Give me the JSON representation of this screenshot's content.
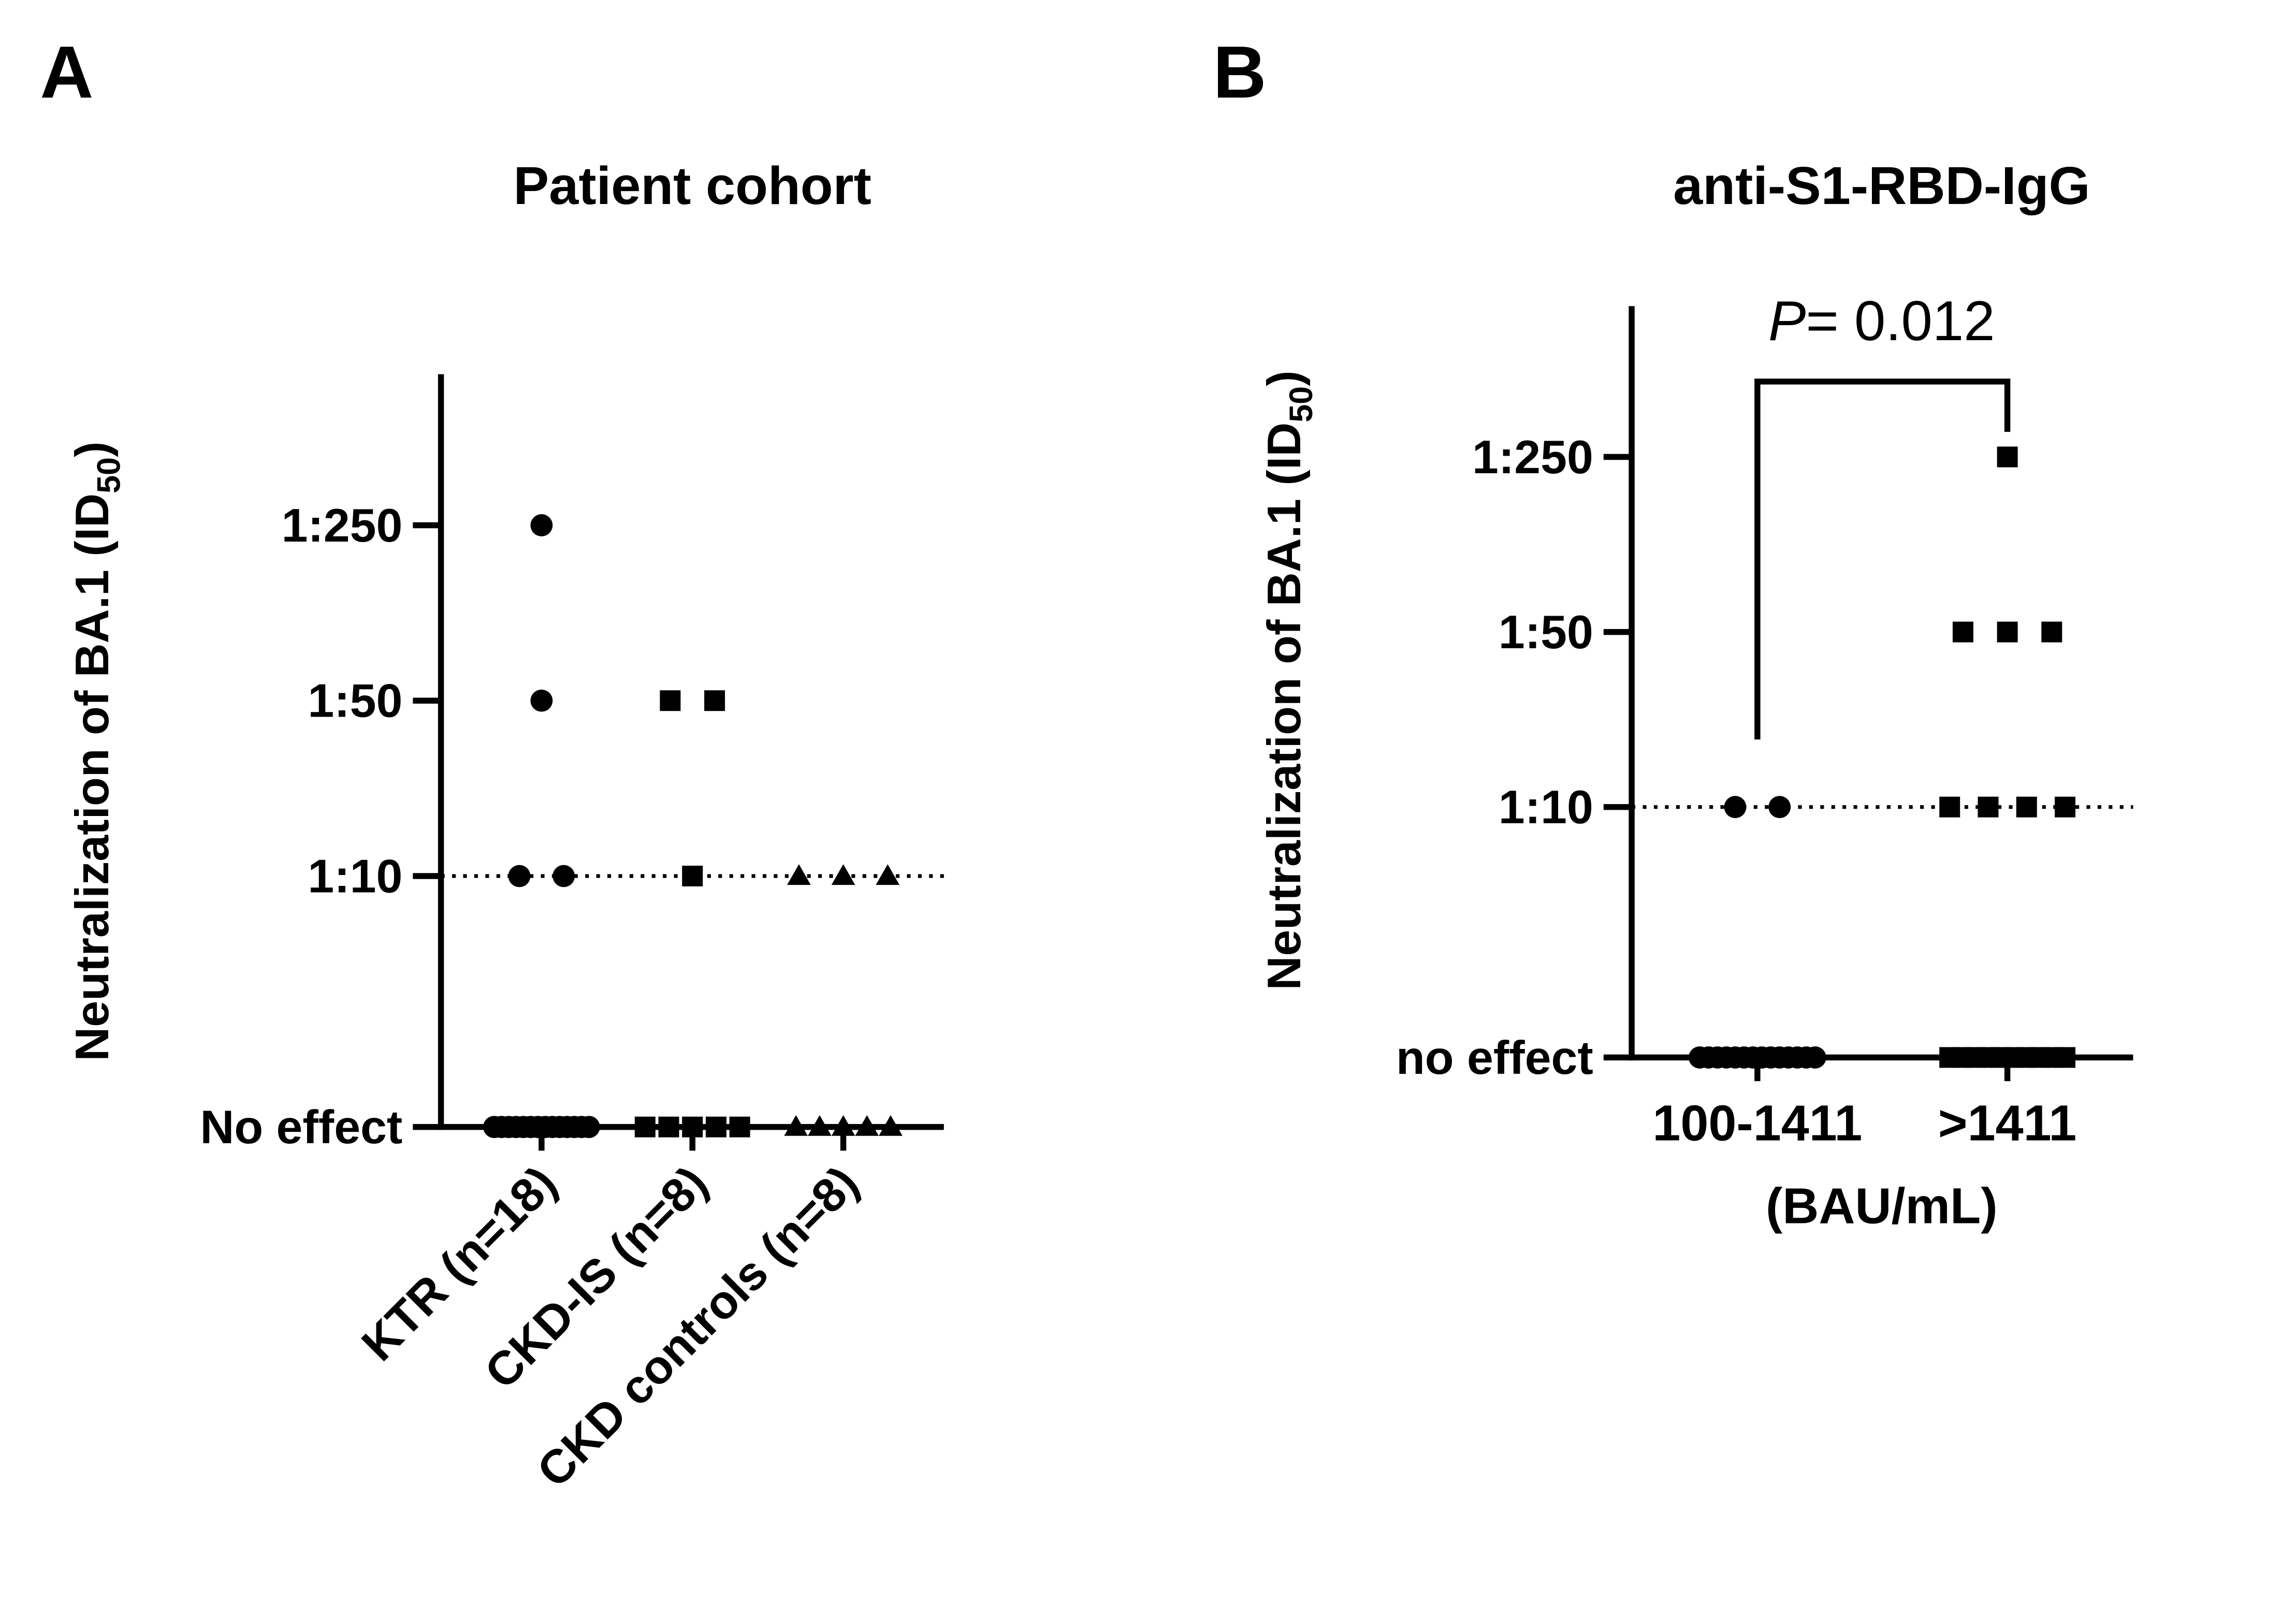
{
  "chart_data": [
    {
      "type": "scatter",
      "panel": "A",
      "title": "Patient cohort",
      "ylabel": {
        "text": "Neutralization of BA.1 (ID",
        "subscript": "50",
        "end": ")"
      },
      "categories": [
        "KTR (n=18)",
        "CKD-IS (n=8)",
        "CKD controls (n=8)"
      ],
      "markers": [
        "circle",
        "square",
        "triangle"
      ],
      "color": "#000000",
      "values": [
        [
          250,
          50,
          10,
          10,
          1,
          1,
          1,
          1,
          1,
          1,
          1,
          1,
          1,
          1,
          1,
          1,
          1,
          1
        ],
        [
          50,
          50,
          10,
          1,
          1,
          1,
          1,
          1
        ],
        [
          10,
          10,
          10,
          1,
          1,
          1,
          1,
          1
        ]
      ],
      "log_scale": true,
      "ylim": [
        1,
        1000
      ],
      "yticks": [
        {
          "value": 1,
          "label": "No effect"
        },
        {
          "value": 10,
          "label": "1:10"
        },
        {
          "value": 50,
          "label": "1:50"
        },
        {
          "value": 250,
          "label": "1:250"
        }
      ],
      "reference_line": 10,
      "grid": false
    },
    {
      "type": "scatter",
      "panel": "B",
      "title": "anti-S1-RBD-IgG",
      "ylabel": {
        "text": "Neutralization of BA.1 (ID",
        "subscript": "50",
        "end": ")"
      },
      "xlabel": "(BAU/mL)",
      "categories": [
        "100-1411",
        ">1411"
      ],
      "markers": [
        "circle",
        "square"
      ],
      "color": "#000000",
      "values": [
        [
          10,
          10,
          1,
          1,
          1,
          1,
          1,
          1,
          1,
          1,
          1,
          1,
          1,
          1,
          1,
          1
        ],
        [
          250,
          50,
          50,
          50,
          10,
          10,
          10,
          10,
          1,
          1,
          1,
          1,
          1,
          1,
          1,
          1,
          1,
          1
        ]
      ],
      "log_scale": true,
      "ylim": [
        1,
        1000
      ],
      "yticks": [
        {
          "value": 1,
          "label": "no effect"
        },
        {
          "value": 10,
          "label": "1:10"
        },
        {
          "value": 50,
          "label": "1:50"
        },
        {
          "value": 250,
          "label": "1:250"
        }
      ],
      "reference_line": 10,
      "grid": false,
      "annotation": [
        "P",
        "= 0.012"
      ]
    }
  ]
}
